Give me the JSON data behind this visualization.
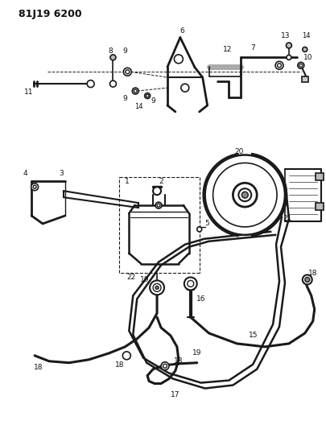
{
  "title": "81J19 6200",
  "bg_color": "#ffffff",
  "line_color": "#1a1a1a",
  "text_color": "#111111",
  "fig_width": 4.06,
  "fig_height": 5.33,
  "dpi": 100
}
